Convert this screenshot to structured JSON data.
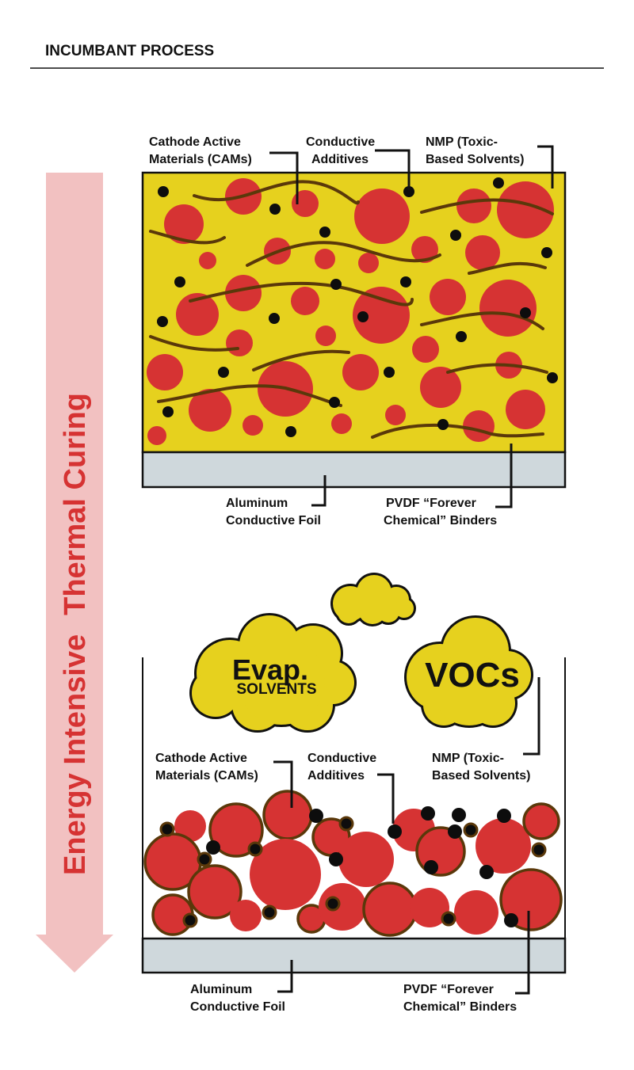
{
  "header": {
    "title": "INCUMBANT PROCESS"
  },
  "arrow": {
    "label_part1": "Energy Intensive",
    "label_part2": "Thermal Curing"
  },
  "colors": {
    "active_material": "#d63333",
    "solvent": "#e6d11e",
    "foil": "#cfd8dc",
    "binder": "#5a380a",
    "arrow": "#f2c1c1",
    "arrow_text": "#d63333"
  },
  "top_panel": {
    "cams": [
      "Cathode Active",
      "Materials (CAMs)"
    ],
    "conductive": [
      "Conductive",
      "Additives"
    ],
    "nmp": [
      "NMP (Toxic-",
      "Based Solvents)"
    ],
    "foil": [
      "Aluminum",
      "Conductive Foil"
    ],
    "pvdf": [
      "PVDF “Forever",
      "Chemical” Binders"
    ]
  },
  "clouds": {
    "evap_line1": "Evap.",
    "evap_line2": "SOLVENTS",
    "vocs": "VOCs"
  },
  "bottom_panel": {
    "cams": [
      "Cathode Active",
      "Materials (CAMs)"
    ],
    "conductive": [
      "Conductive",
      "Additives"
    ],
    "nmp": [
      "NMP (Toxic-",
      "Based Solvents)"
    ],
    "foil": [
      "Aluminum",
      "Conductive Foil"
    ],
    "pvdf": [
      "PVDF “Forever",
      "Chemical” Binders"
    ]
  }
}
